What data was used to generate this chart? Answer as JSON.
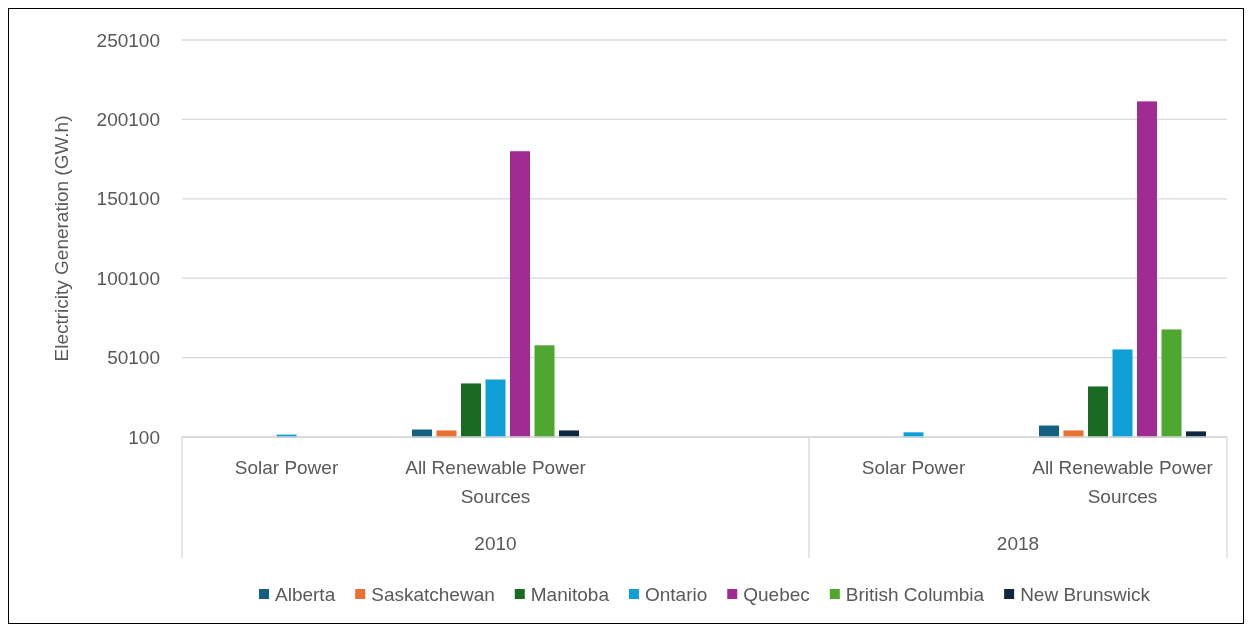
{
  "chart_data": {
    "type": "bar",
    "ylabel": "Electricity Generation (GW.h)",
    "categories": [
      "Solar Power",
      "All Renewable Power Sources",
      null,
      "Solar Power",
      "All Renewable Power Sources"
    ],
    "annotations": [
      "2010",
      "2018"
    ],
    "series": [
      {
        "name": "Alberta",
        "color": "#156082",
        "values": [
          100,
          4500,
          null,
          100,
          7000
        ]
      },
      {
        "name": "Saskatchewan",
        "color": "#e97132",
        "values": [
          100,
          3900,
          null,
          100,
          3900
        ]
      },
      {
        "name": "Manitoba",
        "color": "#196b24",
        "values": [
          100,
          33500,
          null,
          100,
          31600
        ]
      },
      {
        "name": "Ontario",
        "color": "#0f9ed5",
        "values": [
          1300,
          36000,
          null,
          2700,
          54900
        ]
      },
      {
        "name": "Quebec",
        "color": "#a02b93",
        "values": [
          100,
          179700,
          null,
          100,
          211100
        ]
      },
      {
        "name": "British Columbia",
        "color": "#4ea72e",
        "values": [
          100,
          57500,
          null,
          100,
          67500
        ]
      },
      {
        "name": "New Brunswick",
        "color": "#0e2841",
        "values": [
          100,
          3900,
          null,
          100,
          3300
        ]
      }
    ],
    "ylim": [
      100,
      250100
    ],
    "yticks": [
      100,
      50100,
      100100,
      150100,
      200100,
      250100
    ],
    "grid": "y",
    "legend": "bottom"
  }
}
